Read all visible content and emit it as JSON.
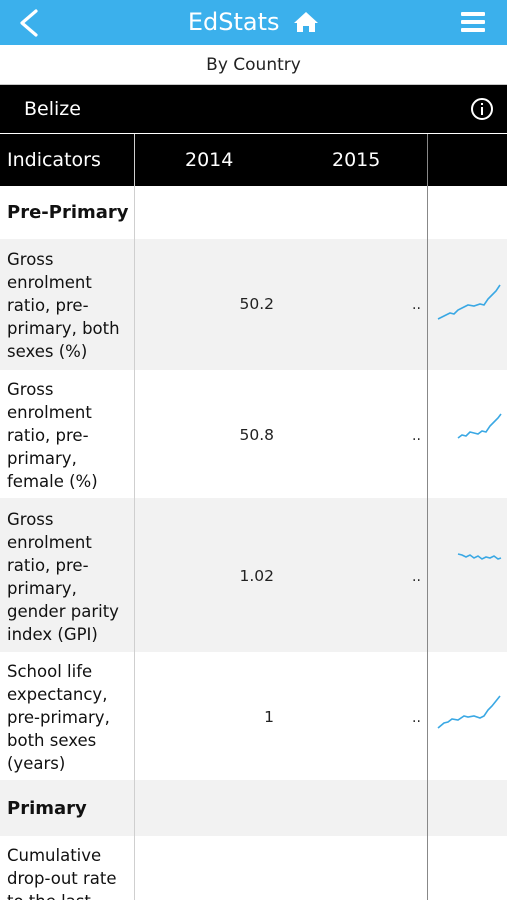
{
  "app": {
    "title": "EdStats"
  },
  "subheader": "By Country",
  "country": "Belize",
  "table": {
    "col_indicators": "Indicators",
    "years": [
      "2014",
      "2015"
    ]
  },
  "sections": [
    {
      "name": "Pre-Primary",
      "rows": [
        {
          "indicator": "Gross enrolment ratio, pre-primary, both sexes (%)",
          "v2014": "50.2",
          "v2015": ".."
        },
        {
          "indicator": "Gross enrolment ratio, pre-primary, female (%)",
          "v2014": "50.8",
          "v2015": ".."
        },
        {
          "indicator": "Gross enrolment ratio, pre-primary, gender parity index (GPI)",
          "v2014": "1.02",
          "v2015": ".."
        },
        {
          "indicator": "School life expectancy, pre-primary, both sexes (years)",
          "v2014": "1",
          "v2015": ".."
        }
      ]
    },
    {
      "name": "Primary",
      "rows": [
        {
          "indicator": "Cumulative drop-out rate to the last",
          "v2014": "",
          "v2015": ""
        }
      ]
    }
  ],
  "colors": {
    "accent": "#3bb0ec",
    "header_bg": "#000000",
    "sparkline": "#3aa8e4"
  },
  "icons": [
    "back-arrow-icon",
    "home-icon",
    "menu-icon",
    "info-icon"
  ]
}
